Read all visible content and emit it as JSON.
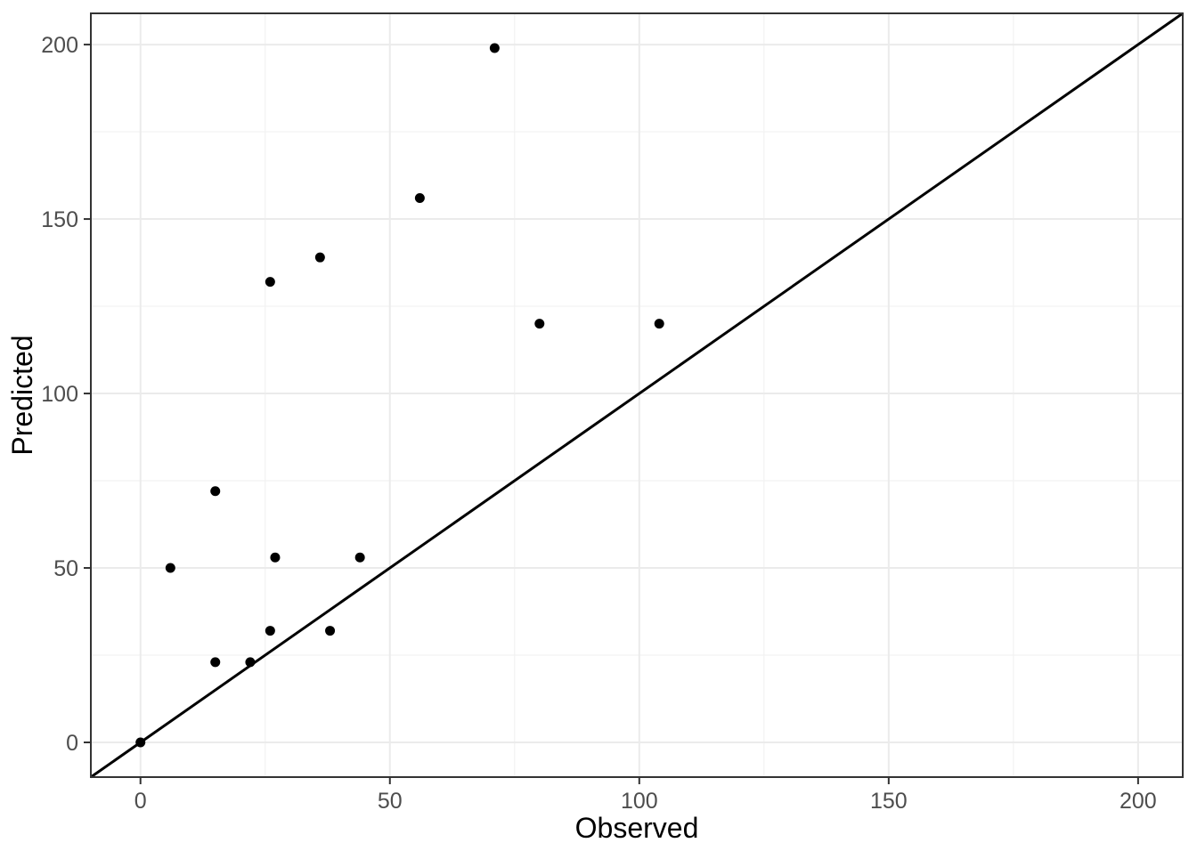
{
  "chart_data": {
    "type": "scatter",
    "title": "",
    "xlabel": "Observed",
    "ylabel": "Predicted",
    "x_domain": [
      -9.95,
      208.95
    ],
    "y_domain": [
      -9.95,
      208.95
    ],
    "x_ticks": [
      0,
      50,
      100,
      150,
      200
    ],
    "y_ticks": [
      0,
      50,
      100,
      150,
      200
    ],
    "x_minor_ticks": [
      25,
      75,
      125,
      175
    ],
    "y_minor_ticks": [
      25,
      75,
      125,
      175
    ],
    "points": [
      {
        "x": 0,
        "y": 0
      },
      {
        "x": 6,
        "y": 50
      },
      {
        "x": 15,
        "y": 23
      },
      {
        "x": 15,
        "y": 72
      },
      {
        "x": 22,
        "y": 23
      },
      {
        "x": 26,
        "y": 32
      },
      {
        "x": 26,
        "y": 132
      },
      {
        "x": 27,
        "y": 53
      },
      {
        "x": 36,
        "y": 139
      },
      {
        "x": 38,
        "y": 32
      },
      {
        "x": 44,
        "y": 53
      },
      {
        "x": 56,
        "y": 156
      },
      {
        "x": 71,
        "y": 199
      },
      {
        "x": 80,
        "y": 120
      },
      {
        "x": 104,
        "y": 120
      }
    ],
    "reference_line": {
      "kind": "identity",
      "intercept": 0,
      "slope": 1
    },
    "legend": "none",
    "grid": "major+minor",
    "colors": {
      "point": "#000000",
      "reference_line": "#000000",
      "major_grid": "#ebebeb",
      "minor_grid": "#f2f2f2",
      "panel_border": "#333333",
      "tick_mark": "#333333",
      "tick_label": "#4d4d4d",
      "axis_title": "#000000",
      "background": "#ffffff"
    },
    "point_radius": 5.5
  }
}
